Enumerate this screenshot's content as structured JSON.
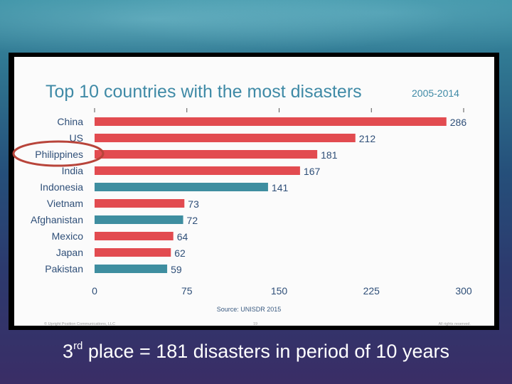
{
  "chart_data": {
    "type": "bar",
    "orientation": "horizontal",
    "title": "Top 10 countries with the most disasters",
    "subtitle": "2005-2014",
    "source": "Source: UNISDR 2015",
    "categories": [
      "China",
      "US",
      "Philippines",
      "India",
      "Indonesia",
      "Vietnam",
      "Afghanistan",
      "Mexico",
      "Japan",
      "Pakistan"
    ],
    "values": [
      286,
      212,
      181,
      167,
      141,
      73,
      72,
      64,
      62,
      59
    ],
    "bar_colors": [
      "#e24b50",
      "#e24b50",
      "#e24b50",
      "#e24b50",
      "#3e8ea0",
      "#e24b50",
      "#3e8ea0",
      "#e24b50",
      "#e24b50",
      "#3e8ea0"
    ],
    "xticks": [
      0,
      75,
      150,
      225,
      300
    ],
    "xlim": [
      0,
      300
    ],
    "highlighted_category": "Philippines",
    "highlight_color": "#b8443a"
  },
  "footer": {
    "copyright": "© Upright Position Communications, LLC",
    "page": "19",
    "rights": "All rights reserved."
  },
  "caption": {
    "number": "3",
    "suffix": "rd",
    "text": " place = 181 disasters in period of 10 years"
  }
}
